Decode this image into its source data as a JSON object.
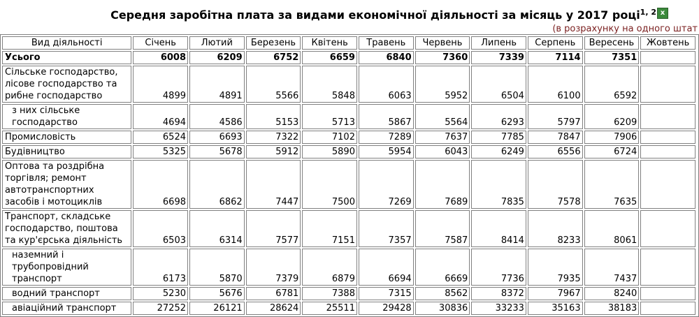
{
  "title": "Середня заробітна плата за видами економічної діяльності за місяць у 2017 році",
  "title_footnotes": "1, 2",
  "export_icon": "excel-icon",
  "subtitle": "(в розрахунку на одного штат",
  "columns": [
    "Вид діяльності",
    "Січень",
    "Лютий",
    "Березень",
    "Квітень",
    "Травень",
    "Червень",
    "Липень",
    "Серпень",
    "Вересень",
    "Жовтень",
    ""
  ],
  "rows": [
    {
      "label": "Усього",
      "values": [
        "6008",
        "6209",
        "6752",
        "6659",
        "6840",
        "7360",
        "7339",
        "7114",
        "7351",
        "",
        ""
      ]
    },
    {
      "label": "Сільське господарство, лісове господарство та рибне господарство",
      "values": [
        "4899",
        "4891",
        "5566",
        "5848",
        "6063",
        "5952",
        "6504",
        "6100",
        "6592",
        "",
        ""
      ]
    },
    {
      "label": "з них сільське господарство",
      "values": [
        "4694",
        "4586",
        "5153",
        "5713",
        "5867",
        "5564",
        "6293",
        "5797",
        "6209",
        "",
        ""
      ]
    },
    {
      "label": "Промисловість",
      "values": [
        "6524",
        "6693",
        "7322",
        "7102",
        "7289",
        "7637",
        "7785",
        "7847",
        "7906",
        "",
        ""
      ]
    },
    {
      "label": "Будівництво",
      "values": [
        "5325",
        "5678",
        "5912",
        "5890",
        "5954",
        "6043",
        "6249",
        "6556",
        "6724",
        "",
        ""
      ]
    },
    {
      "label": "Оптова та роздрібна торгівля; ремонт автотранспортних засобів і мотоциклів",
      "values": [
        "6698",
        "6862",
        "7447",
        "7500",
        "7269",
        "7689",
        "7835",
        "7578",
        "7635",
        "",
        ""
      ]
    },
    {
      "label": "Транспорт, складське господарство, поштова та кур'єрська діяльність",
      "values": [
        "6503",
        "6314",
        "7577",
        "7151",
        "7357",
        "7587",
        "8414",
        "8233",
        "8061",
        "",
        ""
      ]
    },
    {
      "label": "наземний і трубопровідний транспорт",
      "values": [
        "6173",
        "5870",
        "7379",
        "6879",
        "6694",
        "6669",
        "7736",
        "7935",
        "7437",
        "",
        ""
      ]
    },
    {
      "label": "водний транспорт",
      "values": [
        "5230",
        "5676",
        "6781",
        "7388",
        "7315",
        "8562",
        "8372",
        "7967",
        "8240",
        "",
        ""
      ]
    },
    {
      "label": "авіаційний транспорт",
      "values": [
        "27252",
        "26121",
        "28624",
        "25511",
        "29428",
        "30836",
        "33233",
        "35163",
        "38183",
        "",
        ""
      ]
    }
  ]
}
